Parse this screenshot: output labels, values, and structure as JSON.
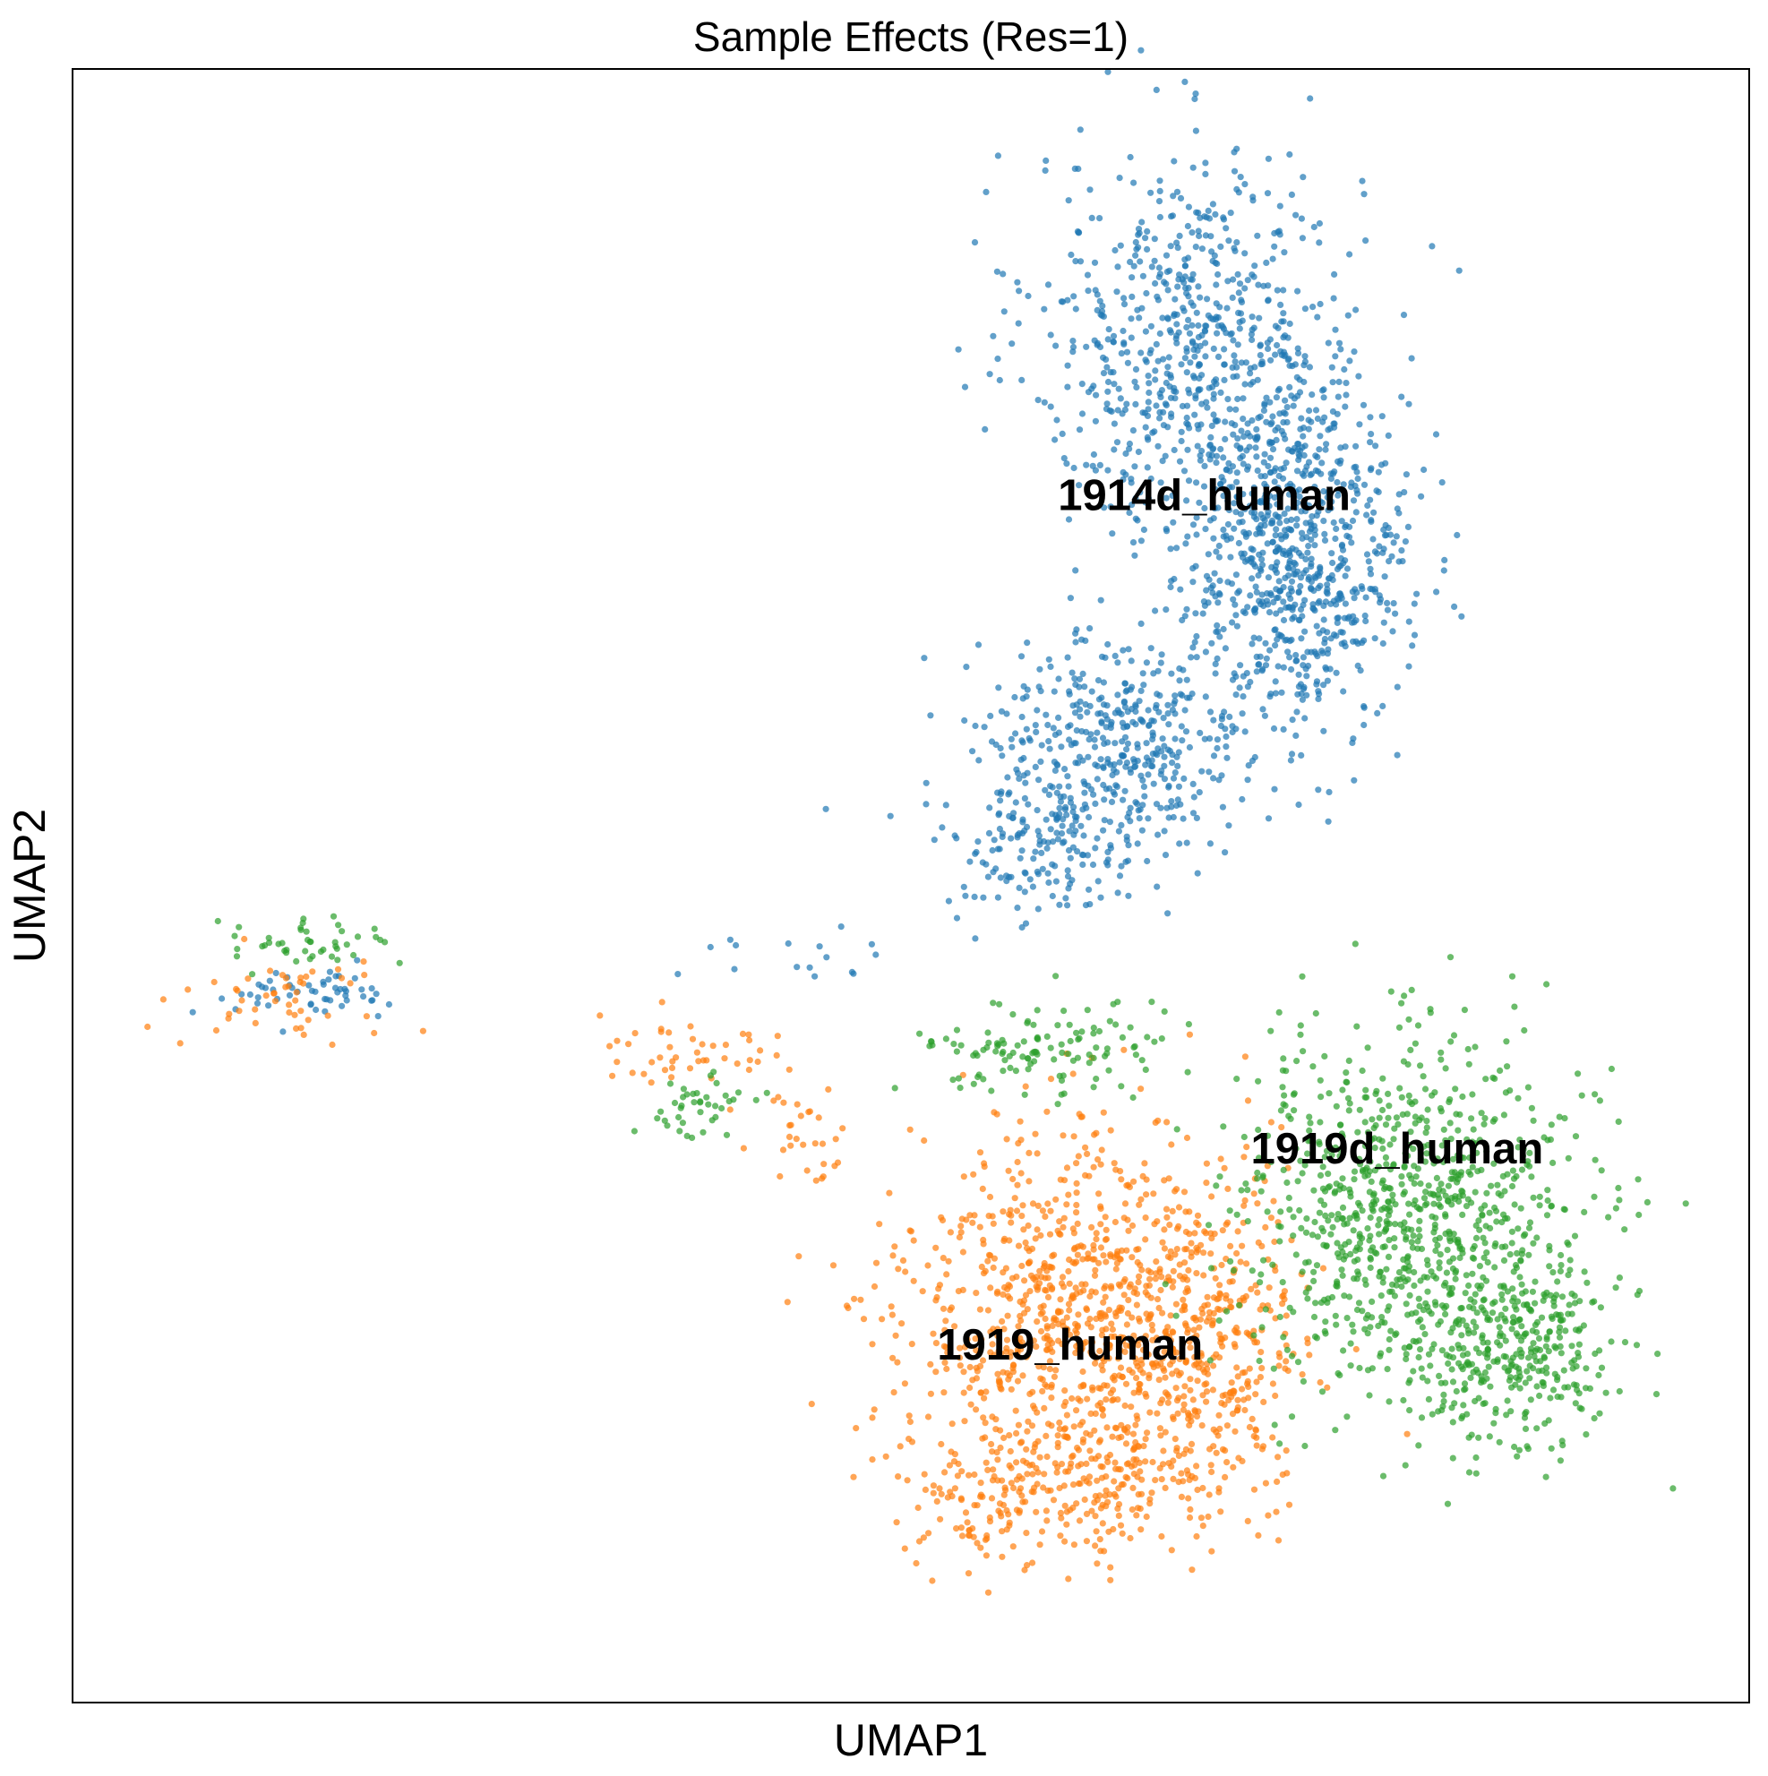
{
  "chart_data": {
    "type": "scatter",
    "title": "Sample Effects (Res=1)",
    "xlabel": "UMAP1",
    "ylabel": "UMAP2",
    "xlim": [
      0,
      100
    ],
    "ylim": [
      0,
      100
    ],
    "grid": false,
    "legend": "none",
    "point_alpha": 0.7,
    "series": [
      {
        "label": "1914d_human",
        "color": "#1f77b4",
        "label_at": [
          67.5,
          73
        ],
        "blobs": [
          {
            "cx": 67,
            "cy": 83,
            "sx": 6.5,
            "sy": 8,
            "n": 700
          },
          {
            "cx": 73,
            "cy": 70,
            "sx": 4.5,
            "sy": 7,
            "n": 750
          },
          {
            "cx": 62,
            "cy": 58,
            "sx": 5.5,
            "sy": 5,
            "n": 450
          },
          {
            "cx": 57,
            "cy": 52,
            "sx": 3,
            "sy": 3,
            "n": 120
          },
          {
            "cx": 43,
            "cy": 45.5,
            "sx": 8,
            "sy": 1,
            "n": 15
          },
          {
            "cx": 14,
            "cy": 43.5,
            "sx": 4,
            "sy": 1,
            "n": 55
          }
        ]
      },
      {
        "label": "1919_human",
        "color": "#ff7f0e",
        "label_at": [
          59.5,
          21
        ],
        "blobs": [
          {
            "cx": 60,
            "cy": 24,
            "sx": 7,
            "sy": 7.5,
            "n": 900
          },
          {
            "cx": 58,
            "cy": 13,
            "sx": 5.5,
            "sy": 3,
            "n": 250
          },
          {
            "cx": 68,
            "cy": 21,
            "sx": 4,
            "sy": 6,
            "n": 300
          },
          {
            "cx": 36,
            "cy": 40,
            "sx": 4,
            "sy": 1.5,
            "n": 45
          },
          {
            "cx": 43.5,
            "cy": 35,
            "sx": 2,
            "sy": 2,
            "n": 30
          },
          {
            "cx": 13,
            "cy": 43,
            "sx": 5,
            "sy": 1.8,
            "n": 50
          }
        ]
      },
      {
        "label": "1919d_human",
        "color": "#2ca02c",
        "label_at": [
          79,
          33
        ],
        "blobs": [
          {
            "cx": 80,
            "cy": 30,
            "sx": 7,
            "sy": 7,
            "n": 900
          },
          {
            "cx": 86,
            "cy": 21,
            "sx": 4,
            "sy": 4,
            "n": 300
          },
          {
            "cx": 58,
            "cy": 40,
            "sx": 5,
            "sy": 2,
            "n": 120
          },
          {
            "cx": 37.5,
            "cy": 36.5,
            "sx": 2,
            "sy": 1.2,
            "n": 40
          },
          {
            "cx": 14,
            "cy": 46.5,
            "sx": 3.5,
            "sy": 1,
            "n": 45
          }
        ]
      }
    ]
  }
}
